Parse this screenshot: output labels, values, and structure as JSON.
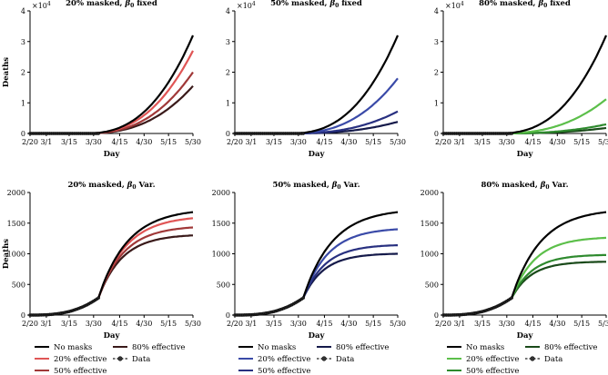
{
  "figure": {
    "x_axis_label": "Day",
    "y_axis_label": "Deaths",
    "x_tick_labels": [
      "2/20",
      "3/1",
      "3/15",
      "3/30",
      "4/15",
      "4/30",
      "5/15",
      "5/30"
    ]
  },
  "chart_data": [
    {
      "type": "line",
      "title_prefix": "20% masked, ",
      "title_beta": "β",
      "title_sub": "0",
      "title_suffix": " fixed",
      "exponent_label": "×10",
      "exponent_power": "4",
      "xlabel": "Day",
      "ylabel": "Deaths",
      "ylim": [
        0,
        4
      ],
      "yticks": [
        "0",
        "1",
        "2",
        "3",
        "4"
      ],
      "x_days": [
        0,
        10,
        24,
        39,
        55,
        70,
        85,
        100
      ],
      "data_end_day": 42,
      "series": [
        {
          "name": "No masks",
          "color": "#000000",
          "final": 3.2
        },
        {
          "name": "20% effective",
          "color": "#e05555",
          "final": 2.7
        },
        {
          "name": "50% effective",
          "color": "#a03838",
          "final": 2.0
        },
        {
          "name": "80% effective",
          "color": "#3a1a1a",
          "final": 1.55
        }
      ]
    },
    {
      "type": "line",
      "title_prefix": "50% masked, ",
      "title_beta": "β",
      "title_sub": "0",
      "title_suffix": " fixed",
      "exponent_label": "×10",
      "exponent_power": "4",
      "xlabel": "Day",
      "ylabel": "",
      "ylim": [
        0,
        4
      ],
      "yticks": [
        "0",
        "1",
        "2",
        "3",
        "4"
      ],
      "x_days": [
        0,
        10,
        24,
        39,
        55,
        70,
        85,
        100
      ],
      "data_end_day": 42,
      "series": [
        {
          "name": "No masks",
          "color": "#000000",
          "final": 3.2
        },
        {
          "name": "20% effective",
          "color": "#3a4aa8",
          "final": 1.8
        },
        {
          "name": "50% effective",
          "color": "#283080",
          "final": 0.72
        },
        {
          "name": "80% effective",
          "color": "#151a4a",
          "final": 0.38
        }
      ]
    },
    {
      "type": "line",
      "title_prefix": "80% masked, ",
      "title_beta": "β",
      "title_sub": "0",
      "title_suffix": " fixed",
      "exponent_label": "×10",
      "exponent_power": "4",
      "xlabel": "Day",
      "ylabel": "",
      "ylim": [
        0,
        4
      ],
      "yticks": [
        "0",
        "1",
        "2",
        "3",
        "4"
      ],
      "x_days": [
        0,
        10,
        24,
        39,
        55,
        70,
        85,
        100
      ],
      "data_end_day": 42,
      "series": [
        {
          "name": "No masks",
          "color": "#000000",
          "final": 3.2
        },
        {
          "name": "20% effective",
          "color": "#5cbf4a",
          "final": 1.12
        },
        {
          "name": "50% effective",
          "color": "#2e8a2e",
          "final": 0.3
        },
        {
          "name": "80% effective",
          "color": "#1a4a1a",
          "final": 0.18
        }
      ]
    },
    {
      "type": "line",
      "title_prefix": "20% masked, ",
      "title_beta": "β",
      "title_sub": "0",
      "title_suffix": " Var.",
      "exponent_label": "",
      "exponent_power": "",
      "xlabel": "Day",
      "ylabel": "Deaths",
      "ylim": [
        0,
        2000
      ],
      "yticks": [
        "0",
        "500",
        "1000",
        "1500",
        "2000"
      ],
      "x_days": [
        0,
        10,
        24,
        39,
        55,
        70,
        85,
        100
      ],
      "data_end_day": 42,
      "series": [
        {
          "name": "No masks",
          "color": "#000000",
          "final": 1680
        },
        {
          "name": "20% effective",
          "color": "#e05555",
          "final": 1580
        },
        {
          "name": "50% effective",
          "color": "#a03838",
          "final": 1430
        },
        {
          "name": "80% effective",
          "color": "#3a1a1a",
          "final": 1300
        }
      ]
    },
    {
      "type": "line",
      "title_prefix": "50% masked, ",
      "title_beta": "β",
      "title_sub": "0",
      "title_suffix": " Var.",
      "exponent_label": "",
      "exponent_power": "",
      "xlabel": "Day",
      "ylabel": "",
      "ylim": [
        0,
        2000
      ],
      "yticks": [
        "0",
        "500",
        "1000",
        "1500",
        "2000"
      ],
      "x_days": [
        0,
        10,
        24,
        39,
        55,
        70,
        85,
        100
      ],
      "data_end_day": 42,
      "series": [
        {
          "name": "No masks",
          "color": "#000000",
          "final": 1680
        },
        {
          "name": "20% effective",
          "color": "#3a4aa8",
          "final": 1400
        },
        {
          "name": "50% effective",
          "color": "#283080",
          "final": 1140
        },
        {
          "name": "80% effective",
          "color": "#151a4a",
          "final": 1000
        }
      ]
    },
    {
      "type": "line",
      "title_prefix": "80% masked, ",
      "title_beta": "β",
      "title_sub": "0",
      "title_suffix": " Var.",
      "exponent_label": "",
      "exponent_power": "",
      "xlabel": "Day",
      "ylabel": "",
      "ylim": [
        0,
        2000
      ],
      "yticks": [
        "0",
        "500",
        "1000",
        "1500",
        "2000"
      ],
      "x_days": [
        0,
        10,
        24,
        39,
        55,
        70,
        85,
        100
      ],
      "data_end_day": 42,
      "series": [
        {
          "name": "No masks",
          "color": "#000000",
          "final": 1680
        },
        {
          "name": "20% effective",
          "color": "#5cbf4a",
          "final": 1260
        },
        {
          "name": "50% effective",
          "color": "#2e8a2e",
          "final": 980
        },
        {
          "name": "80% effective",
          "color": "#1a4a1a",
          "final": 870
        }
      ]
    }
  ],
  "legend": {
    "no_masks": "No masks",
    "e20": "20% effective",
    "e50": "50% effective",
    "e80": "80% effective",
    "data": "Data"
  }
}
